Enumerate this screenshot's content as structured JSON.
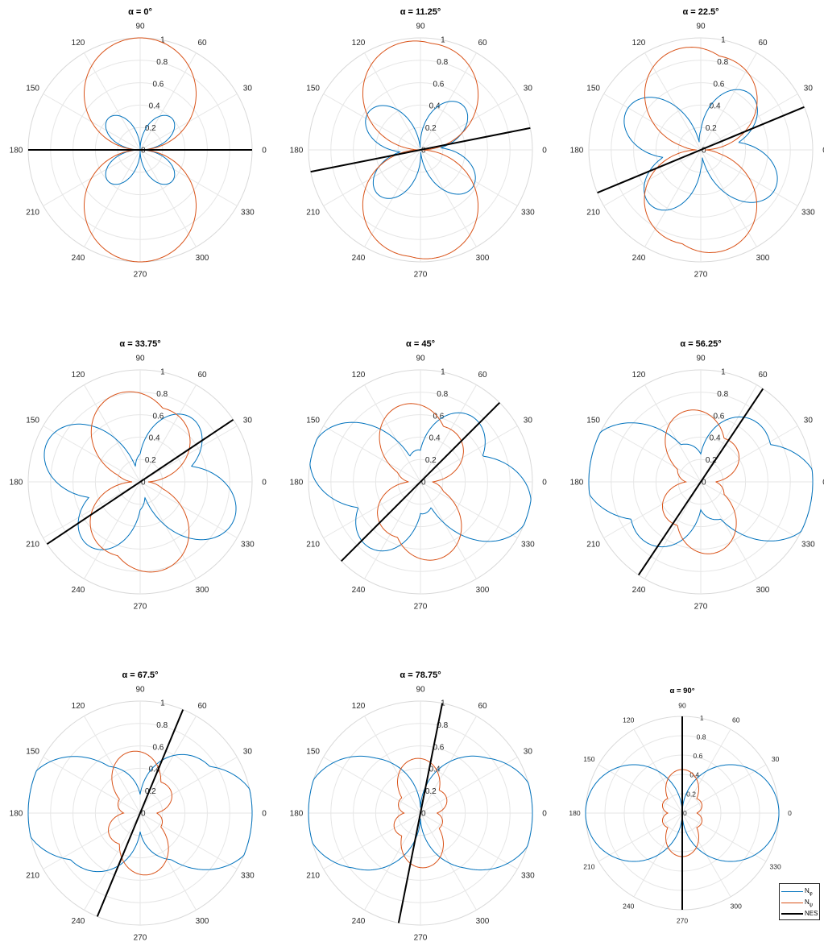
{
  "figure": {
    "legend": {
      "entries": [
        {
          "base": "N",
          "sub": "φ",
          "color": "#0072bd"
        },
        {
          "base": "N",
          "sub": "ψ",
          "color": "#d95319"
        },
        {
          "base": "NES",
          "sub": "",
          "color": "#000000"
        }
      ],
      "placement": "bottom-right"
    }
  },
  "chart_data": [
    {
      "type": "polar",
      "title": "α = 0°",
      "alpha_deg": 0,
      "theta_ticks": [
        "0",
        "30",
        "60",
        "90",
        "120",
        "150",
        "180",
        "210",
        "240",
        "270",
        "300",
        "330"
      ],
      "r_ticks": [
        "0",
        "0.2",
        "0.4",
        "0.6",
        "0.8",
        "1"
      ],
      "rlim": [
        0,
        1
      ],
      "grid": true,
      "series": [
        {
          "name": "Nφ",
          "color": "#0072bd",
          "a": 0,
          "b": 0.4
        },
        {
          "name": "Nψ",
          "color": "#d95319",
          "a": 1,
          "b": 0
        }
      ],
      "nes_angle_deg": 0
    },
    {
      "type": "polar",
      "title": "α = 11.25°",
      "alpha_deg": 11.25,
      "theta_ticks": [
        "0",
        "30",
        "60",
        "90",
        "120",
        "150",
        "180",
        "210",
        "240",
        "270",
        "300",
        "330"
      ],
      "r_ticks": [
        "0",
        "0.2",
        "0.4",
        "0.6",
        "0.8",
        "1"
      ],
      "rlim": [
        0,
        1
      ],
      "grid": true,
      "series": [
        {
          "name": "Nφ",
          "color": "#0072bd",
          "a": 0.18,
          "b": 0.43
        },
        {
          "name": "Nψ",
          "color": "#d95319",
          "a": 0.96,
          "b": 0.05
        }
      ],
      "nes_angle_deg": 11.25
    },
    {
      "type": "polar",
      "title": "α = 22.5°",
      "alpha_deg": 22.5,
      "theta_ticks": [
        "0",
        "30",
        "60",
        "90",
        "120",
        "150",
        "180",
        "210",
        "240",
        "270",
        "300",
        "330"
      ],
      "r_ticks": [
        "0",
        "0.2",
        "0.4",
        "0.6",
        "0.8",
        "1"
      ],
      "rlim": [
        0,
        1
      ],
      "grid": true,
      "series": [
        {
          "name": "Nφ",
          "color": "#0072bd",
          "a": 0.35,
          "b": 0.45
        },
        {
          "name": "Nψ",
          "color": "#d95319",
          "a": 0.87,
          "b": 0.1
        }
      ],
      "nes_angle_deg": 22.5
    },
    {
      "type": "polar",
      "title": "α = 33.75°",
      "alpha_deg": 33.75,
      "theta_ticks": [
        "0",
        "30",
        "60",
        "90",
        "120",
        "150",
        "180",
        "210",
        "240",
        "270",
        "300",
        "330"
      ],
      "r_ticks": [
        "0",
        "0.2",
        "0.4",
        "0.6",
        "0.8",
        "1"
      ],
      "rlim": [
        0,
        1
      ],
      "grid": true,
      "series": [
        {
          "name": "Nφ",
          "color": "#0072bd",
          "a": 0.5,
          "b": 0.45
        },
        {
          "name": "Nψ",
          "color": "#d95319",
          "a": 0.72,
          "b": 0.13
        }
      ],
      "nes_angle_deg": 33.75
    },
    {
      "type": "polar",
      "title": "α = 45°",
      "alpha_deg": 45,
      "theta_ticks": [
        "0",
        "30",
        "60",
        "90",
        "120",
        "150",
        "180",
        "210",
        "240",
        "270",
        "300",
        "330"
      ],
      "r_ticks": [
        "0",
        "0.2",
        "0.4",
        "0.6",
        "0.8",
        "1"
      ],
      "rlim": [
        0,
        1
      ],
      "grid": true,
      "series": [
        {
          "name": "Nφ",
          "color": "#0072bd",
          "a": 0.65,
          "b": 0.4
        },
        {
          "name": "Nψ",
          "color": "#d95319",
          "a": 0.58,
          "b": 0.15
        }
      ],
      "nes_angle_deg": 45
    },
    {
      "type": "polar",
      "title": "α = 56.25°",
      "alpha_deg": 56.25,
      "theta_ticks": [
        "0",
        "30",
        "60",
        "90",
        "120",
        "150",
        "180",
        "210",
        "240",
        "270",
        "300",
        "330"
      ],
      "r_ticks": [
        "0",
        "0.2",
        "0.4",
        "0.6",
        "0.8",
        "1"
      ],
      "rlim": [
        0,
        1
      ],
      "grid": true,
      "series": [
        {
          "name": "Nφ",
          "color": "#0072bd",
          "a": 0.8,
          "b": 0.3
        },
        {
          "name": "Nψ",
          "color": "#d95319",
          "a": 0.5,
          "b": 0.16
        }
      ],
      "nes_angle_deg": 56.25
    },
    {
      "type": "polar",
      "title": "α = 67.5°",
      "alpha_deg": 67.5,
      "theta_ticks": [
        "0",
        "30",
        "60",
        "90",
        "120",
        "150",
        "180",
        "210",
        "240",
        "270",
        "300",
        "330"
      ],
      "r_ticks": [
        "0",
        "0.2",
        "0.4",
        "0.6",
        "0.8",
        "1"
      ],
      "rlim": [
        0,
        1
      ],
      "grid": true,
      "series": [
        {
          "name": "Nφ",
          "color": "#0072bd",
          "a": 0.9,
          "b": 0.18
        },
        {
          "name": "Nψ",
          "color": "#d95319",
          "a": 0.4,
          "b": 0.16
        }
      ],
      "nes_angle_deg": 67.5
    },
    {
      "type": "polar",
      "title": "α = 78.75°",
      "alpha_deg": 78.75,
      "theta_ticks": [
        "0",
        "30",
        "60",
        "90",
        "120",
        "150",
        "180",
        "210",
        "240",
        "270",
        "300",
        "330"
      ],
      "r_ticks": [
        "0",
        "0.2",
        "0.4",
        "0.6",
        "0.8",
        "1"
      ],
      "rlim": [
        0,
        1
      ],
      "grid": true,
      "series": [
        {
          "name": "Nφ",
          "color": "#0072bd",
          "a": 1.0,
          "b": 0.05
        },
        {
          "name": "Nψ",
          "color": "#d95319",
          "a": 0.34,
          "b": 0.15
        }
      ],
      "nes_angle_deg": 78.75
    },
    {
      "type": "polar",
      "title": "α = 90°",
      "alpha_deg": 90,
      "theta_ticks": [
        "0",
        "30",
        "60",
        "90",
        "120",
        "150",
        "180",
        "210",
        "240",
        "270",
        "300",
        "330"
      ],
      "r_ticks": [
        "0",
        "0.2",
        "0.4",
        "0.6",
        "0.8",
        "1"
      ],
      "rlim": [
        0,
        1
      ],
      "grid": true,
      "series": [
        {
          "name": "Nφ",
          "color": "#0072bd",
          "a": 1.0,
          "b": 0
        },
        {
          "name": "Nψ",
          "color": "#d95319",
          "a": 0.3,
          "b": 0.15
        }
      ],
      "nes_angle_deg": 90
    }
  ]
}
